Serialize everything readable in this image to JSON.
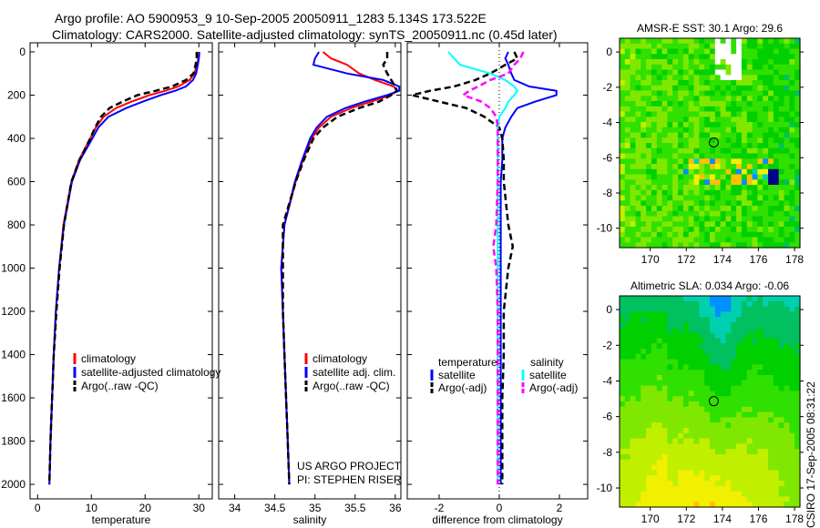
{
  "title_line1": "Argo profile: AO 5900953_9 10-Sep-2005 20050911_1283 5.134S 173.522E",
  "title_line2": "Climatology: CARS2000. Satellite-adjusted climatology: synTS_20050911.nc (0.45d later)",
  "credit": "CSIRO 17-Sep-2005 08:31:22",
  "project_line1": "US ARGO PROJECT",
  "project_line2": "PI: STEPHEN RISER",
  "colors": {
    "climatology": "#ff0000",
    "satellite": "#0000ff",
    "argo": "#000000",
    "sal_satellite": "#00ffff",
    "sal_argo": "#ff00ff"
  },
  "chart_data": [
    {
      "type": "line",
      "xlabel": "temperature",
      "xlim": [
        -1.4,
        32.5
      ],
      "ylim": [
        2067,
        -42
      ],
      "xticks": [
        0,
        10,
        20,
        30
      ],
      "yticks": [
        0,
        200,
        400,
        600,
        800,
        1000,
        1200,
        1400,
        1600,
        1800,
        2000
      ],
      "depth": [
        0,
        30,
        60,
        100,
        130,
        160,
        180,
        200,
        230,
        260,
        300,
        350,
        400,
        500,
        600,
        800,
        1000,
        1200,
        1400,
        1600,
        1800,
        2000
      ],
      "series": [
        {
          "name": "climatology",
          "legend": "climatology",
          "color": "#ff0000",
          "dash": false,
          "values": [
            30.0,
            29.9,
            29.6,
            29.2,
            28.3,
            26.2,
            23.8,
            20.8,
            17.5,
            14.6,
            12.3,
            10.8,
            9.8,
            7.7,
            6.3,
            4.8,
            4.0,
            3.4,
            3.0,
            2.7,
            2.4,
            2.2
          ]
        },
        {
          "name": "satellite-adjusted",
          "legend": "satellite-adjusted climatology",
          "color": "#0000ff",
          "dash": false,
          "values": [
            30.1,
            30.0,
            29.8,
            29.5,
            28.9,
            27.6,
            25.6,
            22.9,
            19.6,
            16.5,
            13.2,
            11.3,
            10.2,
            7.9,
            6.4,
            4.9,
            4.0,
            3.4,
            3.0,
            2.7,
            2.4,
            2.2
          ]
        },
        {
          "name": "argo",
          "legend": "Argo(..raw -QC)",
          "color": "#000000",
          "dash": true,
          "values": [
            29.6,
            29.6,
            29.4,
            29.0,
            27.6,
            25.0,
            22.0,
            18.6,
            15.8,
            13.4,
            11.8,
            10.7,
            9.8,
            7.8,
            6.3,
            4.9,
            4.1,
            3.5,
            3.0,
            2.7,
            2.4,
            2.2
          ]
        }
      ]
    },
    {
      "type": "line",
      "xlabel": "salinity",
      "xlim": [
        33.8,
        36.07
      ],
      "ylim": [
        2067,
        -42
      ],
      "xticks": [
        34,
        34.5,
        35,
        35.5,
        36
      ],
      "depth": [
        0,
        30,
        60,
        100,
        130,
        160,
        180,
        200,
        230,
        260,
        300,
        350,
        400,
        500,
        600,
        800,
        1000,
        1200,
        1400,
        1600,
        1800,
        2000
      ],
      "series": [
        {
          "name": "climatology",
          "legend": "climatology",
          "color": "#ff0000",
          "dash": false,
          "values": [
            35.1,
            35.2,
            35.4,
            35.55,
            35.75,
            35.98,
            36.02,
            35.95,
            35.7,
            35.45,
            35.2,
            35.05,
            34.96,
            34.85,
            34.76,
            34.62,
            34.58,
            34.6,
            34.62,
            34.64,
            34.66,
            34.68
          ]
        },
        {
          "name": "satellite-adjusted",
          "legend": "satellite adj. clim.",
          "color": "#0000ff",
          "dash": false,
          "values": [
            35.05,
            35.0,
            34.98,
            35.4,
            35.85,
            36.05,
            36.05,
            35.9,
            35.62,
            35.38,
            35.15,
            35.02,
            34.94,
            34.84,
            34.75,
            34.62,
            34.58,
            34.6,
            34.62,
            34.64,
            34.66,
            34.68
          ]
        },
        {
          "name": "argo",
          "legend": "Argo(..raw -QC)",
          "color": "#000000",
          "dash": true,
          "values": [
            35.9,
            35.9,
            35.85,
            35.9,
            35.95,
            36.0,
            36.02,
            35.95,
            35.8,
            35.55,
            35.28,
            35.1,
            34.98,
            34.86,
            34.76,
            34.6,
            34.6,
            34.6,
            34.62,
            34.64,
            34.66,
            34.68
          ]
        }
      ]
    },
    {
      "type": "line",
      "xlabel": "difference from climatology",
      "xlim": [
        -3.06,
        2.94
      ],
      "ylim": [
        2067,
        -42
      ],
      "xticks": [
        -2,
        0,
        2
      ],
      "legend_headers": [
        "temperature",
        "salinity"
      ],
      "depth": [
        0,
        30,
        60,
        100,
        130,
        160,
        180,
        200,
        230,
        260,
        300,
        350,
        400,
        500,
        600,
        800,
        900,
        1000,
        1200,
        1400,
        1600,
        1800,
        2000
      ],
      "series": [
        {
          "name": "temperature satellite",
          "legend": "satellite",
          "color": "#0000ff",
          "dash": false,
          "values": [
            0.3,
            0.2,
            0.3,
            0.4,
            0.5,
            1.0,
            1.9,
            1.9,
            1.2,
            0.6,
            0.4,
            0.2,
            0.1,
            0.1,
            0.05,
            0.05,
            0.05,
            0.05,
            0.05,
            0.05,
            0.05,
            0.05,
            0.05
          ]
        },
        {
          "name": "temperature argo",
          "legend": "Argo(-adj)",
          "color": "#000000",
          "dash": true,
          "values": [
            0.5,
            0.6,
            0.2,
            -0.3,
            -0.8,
            -1.5,
            -2.3,
            -2.9,
            -2.0,
            -1.1,
            -0.5,
            0.0,
            0.1,
            0.15,
            0.15,
            0.3,
            0.45,
            0.3,
            0.15,
            0.15,
            0.1,
            0.1,
            0.1
          ]
        },
        {
          "name": "salinity satellite",
          "legend": "satellite",
          "color": "#00ffff",
          "dash": false,
          "values": [
            -1.7,
            -1.5,
            -1.3,
            -0.3,
            0.2,
            0.5,
            0.6,
            0.5,
            0.3,
            0.2,
            0.0,
            -0.05,
            -0.05,
            -0.05,
            -0.05,
            -0.05,
            -0.05,
            -0.05,
            -0.05,
            -0.05,
            -0.05,
            -0.05,
            -0.05
          ]
        },
        {
          "name": "salinity argo",
          "legend": "Argo(-adj)",
          "color": "#ff00ff",
          "dash": true,
          "values": [
            0.8,
            0.7,
            0.5,
            0.3,
            -0.3,
            -0.7,
            -1.0,
            -1.2,
            -0.6,
            -0.3,
            -0.1,
            -0.05,
            -0.05,
            -0.05,
            -0.05,
            -0.1,
            -0.2,
            -0.1,
            -0.05,
            -0.05,
            -0.05,
            -0.05,
            -0.05
          ]
        }
      ]
    },
    {
      "type": "heatmap",
      "title": "AMSR-E SST: 30.1 Argo: 29.6",
      "xlim": [
        168.3,
        178.3
      ],
      "ylim": [
        -11.1,
        0.78
      ],
      "xticks": [
        170,
        172,
        174,
        176,
        178
      ],
      "yticks": [
        0,
        -2,
        -4,
        -6,
        -8,
        -10
      ],
      "marker": {
        "lon": 173.522,
        "lat": -5.134
      }
    },
    {
      "type": "heatmap",
      "title": "Altimetric SLA: 0.034 Argo: -0.06",
      "xlim": [
        168.3,
        178.3
      ],
      "ylim": [
        -11.07,
        0.77
      ],
      "xticks": [
        170,
        172,
        174,
        176,
        178
      ],
      "yticks": [
        0,
        -2,
        -4,
        -6,
        -8,
        -10
      ],
      "marker": {
        "lon": 173.522,
        "lat": -5.134
      }
    }
  ]
}
